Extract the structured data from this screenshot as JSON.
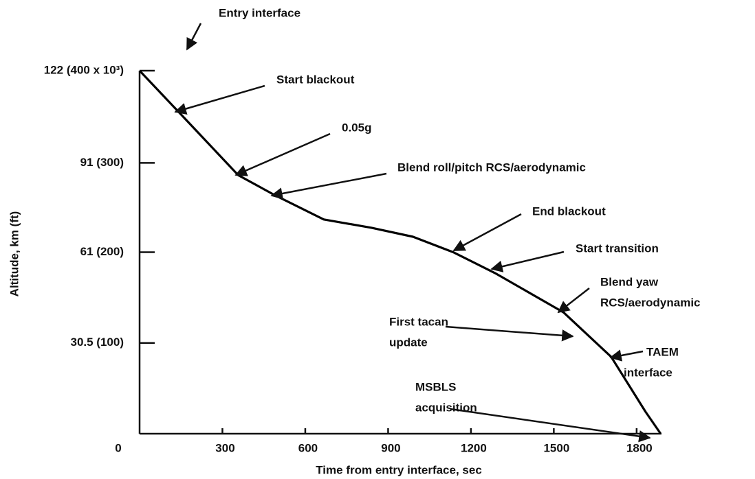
{
  "chart_data": {
    "type": "line",
    "x_label": "Time from entry interface, sec",
    "y_label": "Altitude, km (ft)",
    "xlim": [
      0,
      1890
    ],
    "ylim": [
      0,
      122
    ],
    "xticks": [
      300,
      600,
      900,
      1200,
      1500,
      1800
    ],
    "yticks": [
      0,
      {
        "value": 30.5,
        "label": "30.5  (100)"
      },
      {
        "value": 61,
        "label": "61  (200)"
      },
      {
        "value": 91,
        "label": "91  (300)"
      },
      {
        "value": 122,
        "label": "122  (400 x 10³)"
      }
    ],
    "series": [
      {
        "color": "#000000",
        "x": [
          0,
          146,
          357,
          493,
          667,
          840,
          990,
          1138,
          1287,
          1535,
          1708,
          1832,
          1887
        ],
        "values": [
          122,
          107.7,
          86.9,
          80,
          72,
          69.2,
          66.2,
          60.9,
          54,
          40.8,
          25.8,
          7.4,
          0
        ]
      }
    ],
    "annotations": [
      [
        "Entry  interface"
      ],
      [
        "Start  blackout"
      ],
      [
        "0.05g"
      ],
      [
        "Blend  roll/pitch  RCS/aerodynamic"
      ],
      [
        "End blackout"
      ],
      [
        "Start   transition"
      ],
      [
        "Blend yaw",
        "RCS/aerodynamic"
      ],
      [
        "First tacan",
        "update"
      ],
      [
        "TAEM",
        "interface"
      ],
      [
        "MSBLS",
        "acquisition"
      ]
    ]
  }
}
